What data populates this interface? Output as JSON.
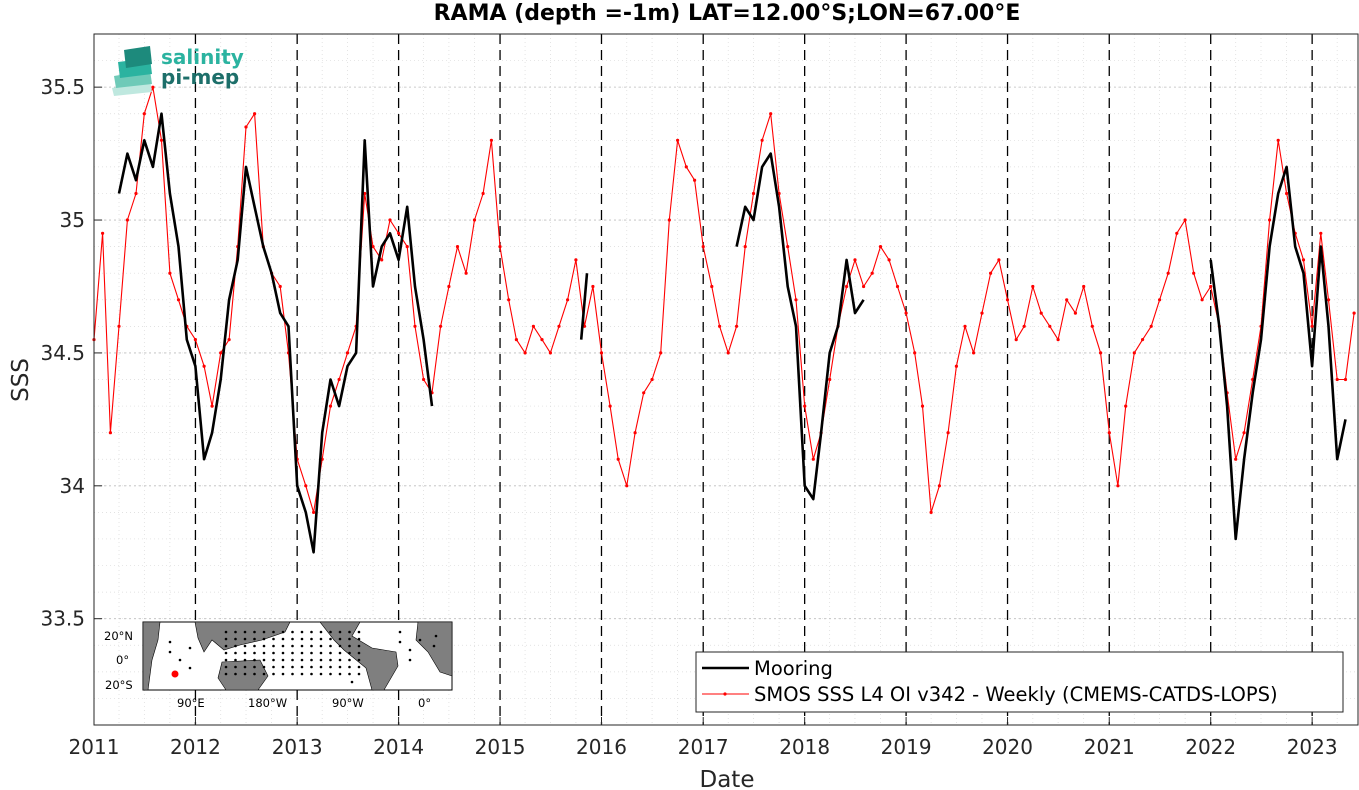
{
  "chart_data": {
    "type": "line",
    "title": "RAMA (depth =-1m) LAT=12.00°S;LON=67.00°E",
    "xlabel": "Date",
    "ylabel": "SSS",
    "xlim": [
      "2011-01-01",
      "2023-06-15"
    ],
    "ylim": [
      33.1,
      35.7
    ],
    "x_ticks": [
      "2011",
      "2012",
      "2013",
      "2014",
      "2015",
      "2016",
      "2017",
      "2018",
      "2019",
      "2020",
      "2021",
      "2022",
      "2023"
    ],
    "y_ticks": [
      "33.5",
      "34",
      "34.5",
      "35",
      "35.5"
    ],
    "grid": true,
    "year_separators": "dashed vertical lines at each year start",
    "legend_position": "bottom-right",
    "series": [
      {
        "name": "Mooring",
        "color": "#000000",
        "style": "thick solid line",
        "segments": [
          [
            [
              "2011-04-01",
              35.1
            ],
            [
              "2011-05-01",
              35.25
            ],
            [
              "2011-06-01",
              35.15
            ],
            [
              "2011-07-01",
              35.3
            ],
            [
              "2011-08-01",
              35.2
            ],
            [
              "2011-09-01",
              35.4
            ],
            [
              "2011-10-01",
              35.1
            ],
            [
              "2011-11-01",
              34.9
            ],
            [
              "2011-12-01",
              34.55
            ],
            [
              "2012-01-01",
              34.45
            ],
            [
              "2012-02-01",
              34.1
            ],
            [
              "2012-03-01",
              34.2
            ],
            [
              "2012-04-01",
              34.4
            ],
            [
              "2012-05-01",
              34.7
            ],
            [
              "2012-06-01",
              34.85
            ],
            [
              "2012-07-01",
              35.2
            ],
            [
              "2012-08-01",
              35.05
            ],
            [
              "2012-09-01",
              34.9
            ],
            [
              "2012-10-01",
              34.8
            ],
            [
              "2012-11-01",
              34.65
            ],
            [
              "2012-12-01",
              34.6
            ],
            [
              "2013-01-01",
              34.0
            ],
            [
              "2013-02-01",
              33.9
            ],
            [
              "2013-03-01",
              33.75
            ],
            [
              "2013-04-01",
              34.2
            ],
            [
              "2013-05-01",
              34.4
            ],
            [
              "2013-06-01",
              34.3
            ],
            [
              "2013-07-01",
              34.45
            ],
            [
              "2013-08-01",
              34.5
            ],
            [
              "2013-09-01",
              35.3
            ],
            [
              "2013-10-01",
              34.75
            ],
            [
              "2013-11-01",
              34.9
            ],
            [
              "2013-12-01",
              34.95
            ],
            [
              "2014-01-01",
              34.85
            ],
            [
              "2014-02-01",
              35.05
            ],
            [
              "2014-03-01",
              34.75
            ],
            [
              "2014-04-01",
              34.55
            ],
            [
              "2014-05-01",
              34.3
            ]
          ],
          [
            [
              "2015-10-20",
              34.55
            ],
            [
              "2015-11-10",
              34.8
            ]
          ],
          [
            [
              "2017-05-01",
              34.9
            ],
            [
              "2017-06-01",
              35.05
            ],
            [
              "2017-07-01",
              35.0
            ],
            [
              "2017-08-01",
              35.2
            ],
            [
              "2017-09-01",
              35.25
            ],
            [
              "2017-10-01",
              35.05
            ],
            [
              "2017-11-01",
              34.75
            ],
            [
              "2017-12-01",
              34.6
            ],
            [
              "2018-01-01",
              34.0
            ],
            [
              "2018-02-01",
              33.95
            ],
            [
              "2018-03-01",
              34.2
            ],
            [
              "2018-04-01",
              34.5
            ],
            [
              "2018-05-01",
              34.6
            ],
            [
              "2018-06-01",
              34.85
            ],
            [
              "2018-07-01",
              34.65
            ],
            [
              "2018-08-01",
              34.7
            ]
          ],
          [
            [
              "2022-01-01",
              34.85
            ],
            [
              "2022-02-01",
              34.6
            ],
            [
              "2022-03-01",
              34.3
            ],
            [
              "2022-04-01",
              33.8
            ],
            [
              "2022-05-01",
              34.1
            ],
            [
              "2022-06-01",
              34.35
            ],
            [
              "2022-07-01",
              34.55
            ],
            [
              "2022-08-01",
              34.9
            ],
            [
              "2022-09-01",
              35.1
            ],
            [
              "2022-10-01",
              35.2
            ],
            [
              "2022-11-01",
              34.9
            ],
            [
              "2022-12-01",
              34.8
            ],
            [
              "2023-01-01",
              34.45
            ],
            [
              "2023-02-01",
              34.9
            ],
            [
              "2023-03-01",
              34.6
            ],
            [
              "2023-04-01",
              34.1
            ],
            [
              "2023-05-01",
              34.25
            ]
          ]
        ]
      },
      {
        "name": "SMOS SSS L4 OI v342 - Weekly (CMEMS-CATDS-LOPS)",
        "color": "#ff0000",
        "style": "thin line with dot markers",
        "points": [
          [
            "2011-01-01",
            34.55
          ],
          [
            "2011-02-01",
            34.95
          ],
          [
            "2011-03-01",
            34.2
          ],
          [
            "2011-04-01",
            34.6
          ],
          [
            "2011-05-01",
            35.0
          ],
          [
            "2011-06-01",
            35.1
          ],
          [
            "2011-07-01",
            35.4
          ],
          [
            "2011-08-01",
            35.5
          ],
          [
            "2011-09-01",
            35.3
          ],
          [
            "2011-10-01",
            34.8
          ],
          [
            "2011-11-01",
            34.7
          ],
          [
            "2011-12-01",
            34.6
          ],
          [
            "2012-01-01",
            34.55
          ],
          [
            "2012-02-01",
            34.45
          ],
          [
            "2012-03-01",
            34.3
          ],
          [
            "2012-04-01",
            34.5
          ],
          [
            "2012-05-01",
            34.55
          ],
          [
            "2012-06-01",
            34.9
          ],
          [
            "2012-07-01",
            35.35
          ],
          [
            "2012-08-01",
            35.4
          ],
          [
            "2012-09-01",
            34.9
          ],
          [
            "2012-10-01",
            34.8
          ],
          [
            "2012-11-01",
            34.75
          ],
          [
            "2012-12-01",
            34.5
          ],
          [
            "2013-01-01",
            34.1
          ],
          [
            "2013-02-01",
            34.0
          ],
          [
            "2013-03-01",
            33.9
          ],
          [
            "2013-04-01",
            34.1
          ],
          [
            "2013-05-01",
            34.3
          ],
          [
            "2013-06-01",
            34.4
          ],
          [
            "2013-07-01",
            34.5
          ],
          [
            "2013-08-01",
            34.6
          ],
          [
            "2013-09-01",
            35.1
          ],
          [
            "2013-10-01",
            34.9
          ],
          [
            "2013-11-01",
            34.85
          ],
          [
            "2013-12-01",
            35.0
          ],
          [
            "2014-01-01",
            34.95
          ],
          [
            "2014-02-01",
            34.9
          ],
          [
            "2014-03-01",
            34.6
          ],
          [
            "2014-04-01",
            34.4
          ],
          [
            "2014-05-01",
            34.35
          ],
          [
            "2014-06-01",
            34.6
          ],
          [
            "2014-07-01",
            34.75
          ],
          [
            "2014-08-01",
            34.9
          ],
          [
            "2014-09-01",
            34.8
          ],
          [
            "2014-10-01",
            35.0
          ],
          [
            "2014-11-01",
            35.1
          ],
          [
            "2014-12-01",
            35.3
          ],
          [
            "2015-01-01",
            34.9
          ],
          [
            "2015-02-01",
            34.7
          ],
          [
            "2015-03-01",
            34.55
          ],
          [
            "2015-04-01",
            34.5
          ],
          [
            "2015-05-01",
            34.6
          ],
          [
            "2015-06-01",
            34.55
          ],
          [
            "2015-07-01",
            34.5
          ],
          [
            "2015-08-01",
            34.6
          ],
          [
            "2015-09-01",
            34.7
          ],
          [
            "2015-10-01",
            34.85
          ],
          [
            "2015-11-01",
            34.6
          ],
          [
            "2015-12-01",
            34.75
          ],
          [
            "2016-01-01",
            34.5
          ],
          [
            "2016-02-01",
            34.3
          ],
          [
            "2016-03-01",
            34.1
          ],
          [
            "2016-04-01",
            34.0
          ],
          [
            "2016-05-01",
            34.2
          ],
          [
            "2016-06-01",
            34.35
          ],
          [
            "2016-07-01",
            34.4
          ],
          [
            "2016-08-01",
            34.5
          ],
          [
            "2016-09-01",
            35.0
          ],
          [
            "2016-10-01",
            35.3
          ],
          [
            "2016-11-01",
            35.2
          ],
          [
            "2016-12-01",
            35.15
          ],
          [
            "2017-01-01",
            34.9
          ],
          [
            "2017-02-01",
            34.75
          ],
          [
            "2017-03-01",
            34.6
          ],
          [
            "2017-04-01",
            34.5
          ],
          [
            "2017-05-01",
            34.6
          ],
          [
            "2017-06-01",
            34.9
          ],
          [
            "2017-07-01",
            35.1
          ],
          [
            "2017-08-01",
            35.3
          ],
          [
            "2017-09-01",
            35.4
          ],
          [
            "2017-10-01",
            35.1
          ],
          [
            "2017-11-01",
            34.9
          ],
          [
            "2017-12-01",
            34.7
          ],
          [
            "2018-01-01",
            34.3
          ],
          [
            "2018-02-01",
            34.1
          ],
          [
            "2018-03-01",
            34.2
          ],
          [
            "2018-04-01",
            34.4
          ],
          [
            "2018-05-01",
            34.6
          ],
          [
            "2018-06-01",
            34.75
          ],
          [
            "2018-07-01",
            34.85
          ],
          [
            "2018-08-01",
            34.75
          ],
          [
            "2018-09-01",
            34.8
          ],
          [
            "2018-10-01",
            34.9
          ],
          [
            "2018-11-01",
            34.85
          ],
          [
            "2018-12-01",
            34.75
          ],
          [
            "2019-01-01",
            34.65
          ],
          [
            "2019-02-01",
            34.5
          ],
          [
            "2019-03-01",
            34.3
          ],
          [
            "2019-04-01",
            33.9
          ],
          [
            "2019-05-01",
            34.0
          ],
          [
            "2019-06-01",
            34.2
          ],
          [
            "2019-07-01",
            34.45
          ],
          [
            "2019-08-01",
            34.6
          ],
          [
            "2019-09-01",
            34.5
          ],
          [
            "2019-10-01",
            34.65
          ],
          [
            "2019-11-01",
            34.8
          ],
          [
            "2019-12-01",
            34.85
          ],
          [
            "2020-01-01",
            34.7
          ],
          [
            "2020-02-01",
            34.55
          ],
          [
            "2020-03-01",
            34.6
          ],
          [
            "2020-04-01",
            34.75
          ],
          [
            "2020-05-01",
            34.65
          ],
          [
            "2020-06-01",
            34.6
          ],
          [
            "2020-07-01",
            34.55
          ],
          [
            "2020-08-01",
            34.7
          ],
          [
            "2020-09-01",
            34.65
          ],
          [
            "2020-10-01",
            34.75
          ],
          [
            "2020-11-01",
            34.6
          ],
          [
            "2020-12-01",
            34.5
          ],
          [
            "2021-01-01",
            34.2
          ],
          [
            "2021-02-01",
            34.0
          ],
          [
            "2021-03-01",
            34.3
          ],
          [
            "2021-04-01",
            34.5
          ],
          [
            "2021-05-01",
            34.55
          ],
          [
            "2021-06-01",
            34.6
          ],
          [
            "2021-07-01",
            34.7
          ],
          [
            "2021-08-01",
            34.8
          ],
          [
            "2021-09-01",
            34.95
          ],
          [
            "2021-10-01",
            35.0
          ],
          [
            "2021-11-01",
            34.8
          ],
          [
            "2021-12-01",
            34.7
          ],
          [
            "2022-01-01",
            34.75
          ],
          [
            "2022-02-01",
            34.6
          ],
          [
            "2022-03-01",
            34.35
          ],
          [
            "2022-04-01",
            34.1
          ],
          [
            "2022-05-01",
            34.2
          ],
          [
            "2022-06-01",
            34.4
          ],
          [
            "2022-07-01",
            34.6
          ],
          [
            "2022-08-01",
            35.0
          ],
          [
            "2022-09-01",
            35.3
          ],
          [
            "2022-10-01",
            35.1
          ],
          [
            "2022-11-01",
            34.95
          ],
          [
            "2022-12-01",
            34.85
          ],
          [
            "2023-01-01",
            34.6
          ],
          [
            "2023-02-01",
            34.95
          ],
          [
            "2023-03-01",
            34.7
          ],
          [
            "2023-04-01",
            34.4
          ],
          [
            "2023-05-01",
            34.4
          ],
          [
            "2023-06-01",
            34.65
          ]
        ]
      }
    ]
  },
  "logo": {
    "line1": "salinity",
    "line2": "pi-mep"
  },
  "inset_map": {
    "lat_labels": [
      "20°N",
      "0°",
      "20°S"
    ],
    "lon_labels": [
      "90°E",
      "180°W",
      "90°W",
      "0°"
    ]
  }
}
